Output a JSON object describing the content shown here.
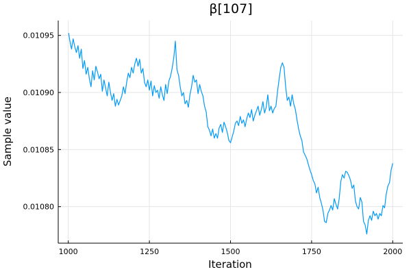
{
  "chart_data": {
    "type": "line",
    "title": "β[107]",
    "xlabel": "Iteration",
    "ylabel": "Sample value",
    "xlim": [
      969,
      2031
    ],
    "ylim": [
      0.010768,
      0.010963
    ],
    "x_ticks": [
      {
        "value": 1000,
        "label": "1000"
      },
      {
        "value": 1250,
        "label": "1250"
      },
      {
        "value": 1500,
        "label": "1500"
      },
      {
        "value": 1750,
        "label": "1750"
      },
      {
        "value": 2000,
        "label": "2000"
      }
    ],
    "y_ticks": [
      {
        "value": 0.0108,
        "label": "0.01080"
      },
      {
        "value": 0.01085,
        "label": "0.01085"
      },
      {
        "value": 0.0109,
        "label": "0.01090"
      },
      {
        "value": 0.01095,
        "label": "0.01095"
      }
    ],
    "grid": true,
    "legend": "none",
    "series": [
      {
        "color": "#009af9",
        "x": [
          1001,
          1005,
          1010,
          1015,
          1020,
          1025,
          1030,
          1035,
          1040,
          1045,
          1050,
          1055,
          1060,
          1065,
          1070,
          1075,
          1080,
          1085,
          1090,
          1095,
          1100,
          1105,
          1110,
          1115,
          1120,
          1125,
          1130,
          1135,
          1140,
          1145,
          1150,
          1155,
          1160,
          1165,
          1170,
          1175,
          1180,
          1185,
          1190,
          1195,
          1200,
          1205,
          1210,
          1215,
          1220,
          1225,
          1230,
          1235,
          1240,
          1245,
          1250,
          1255,
          1260,
          1265,
          1270,
          1275,
          1280,
          1285,
          1290,
          1295,
          1300,
          1305,
          1310,
          1315,
          1320,
          1325,
          1330,
          1335,
          1340,
          1345,
          1350,
          1355,
          1360,
          1365,
          1370,
          1375,
          1380,
          1385,
          1390,
          1395,
          1400,
          1405,
          1410,
          1415,
          1420,
          1425,
          1430,
          1435,
          1440,
          1445,
          1450,
          1455,
          1460,
          1465,
          1470,
          1475,
          1480,
          1485,
          1490,
          1495,
          1500,
          1505,
          1510,
          1515,
          1520,
          1525,
          1530,
          1535,
          1540,
          1545,
          1550,
          1555,
          1560,
          1565,
          1570,
          1575,
          1580,
          1585,
          1590,
          1595,
          1600,
          1605,
          1610,
          1615,
          1620,
          1625,
          1630,
          1635,
          1640,
          1645,
          1650,
          1655,
          1660,
          1665,
          1670,
          1675,
          1680,
          1685,
          1690,
          1695,
          1700,
          1705,
          1710,
          1715,
          1720,
          1725,
          1730,
          1735,
          1740,
          1745,
          1750,
          1755,
          1760,
          1765,
          1770,
          1775,
          1780,
          1785,
          1790,
          1795,
          1800,
          1805,
          1810,
          1815,
          1820,
          1825,
          1830,
          1835,
          1840,
          1845,
          1850,
          1855,
          1860,
          1865,
          1870,
          1875,
          1880,
          1885,
          1890,
          1895,
          1900,
          1905,
          1910,
          1915,
          1920,
          1925,
          1930,
          1935,
          1940,
          1945,
          1950,
          1955,
          1960,
          1965,
          1970,
          1975,
          1980,
          1985,
          1990,
          1995,
          2000
        ],
        "values": [
          0.010952,
          0.010945,
          0.010938,
          0.010947,
          0.01094,
          0.010935,
          0.010941,
          0.01093,
          0.010938,
          0.010921,
          0.010928,
          0.010916,
          0.010922,
          0.010912,
          0.010905,
          0.010919,
          0.010911,
          0.010923,
          0.010918,
          0.010912,
          0.010916,
          0.010901,
          0.010911,
          0.010904,
          0.010897,
          0.010909,
          0.0109,
          0.010893,
          0.010899,
          0.010888,
          0.010894,
          0.010889,
          0.010893,
          0.010897,
          0.010905,
          0.010899,
          0.010909,
          0.010917,
          0.010913,
          0.010922,
          0.010917,
          0.010925,
          0.01093,
          0.010923,
          0.010929,
          0.010917,
          0.010921,
          0.010909,
          0.010905,
          0.010911,
          0.010902,
          0.01091,
          0.010897,
          0.010906,
          0.0109,
          0.010902,
          0.010895,
          0.010905,
          0.010898,
          0.010893,
          0.010907,
          0.010899,
          0.01091,
          0.010914,
          0.010921,
          0.01093,
          0.010945,
          0.01092,
          0.010915,
          0.010905,
          0.010897,
          0.0109,
          0.01089,
          0.010893,
          0.010887,
          0.010898,
          0.010905,
          0.010915,
          0.010909,
          0.010911,
          0.010899,
          0.010907,
          0.010901,
          0.010897,
          0.010888,
          0.010883,
          0.01087,
          0.010867,
          0.010862,
          0.010868,
          0.01086,
          0.010864,
          0.01086,
          0.010869,
          0.010872,
          0.010865,
          0.010874,
          0.01087,
          0.010865,
          0.010858,
          0.010856,
          0.010861,
          0.010866,
          0.010873,
          0.010875,
          0.010871,
          0.010879,
          0.010873,
          0.010876,
          0.01087,
          0.010877,
          0.010882,
          0.010878,
          0.010885,
          0.010875,
          0.01088,
          0.010884,
          0.010888,
          0.01088,
          0.010885,
          0.010892,
          0.010882,
          0.010887,
          0.010898,
          0.010884,
          0.010888,
          0.010882,
          0.010886,
          0.010888,
          0.010901,
          0.010912,
          0.010922,
          0.010926,
          0.010922,
          0.010905,
          0.010893,
          0.010896,
          0.010888,
          0.010898,
          0.01089,
          0.010885,
          0.010876,
          0.010868,
          0.010862,
          0.010858,
          0.010848,
          0.010845,
          0.010842,
          0.010837,
          0.010832,
          0.010828,
          0.010823,
          0.01082,
          0.010812,
          0.010817,
          0.010808,
          0.010803,
          0.010797,
          0.010787,
          0.010786,
          0.010794,
          0.010797,
          0.010801,
          0.010797,
          0.010807,
          0.010802,
          0.010798,
          0.010807,
          0.010822,
          0.010828,
          0.010825,
          0.010831,
          0.01083,
          0.010827,
          0.010823,
          0.010816,
          0.010819,
          0.010805,
          0.0108,
          0.010798,
          0.010808,
          0.010804,
          0.010787,
          0.010784,
          0.010776,
          0.010788,
          0.010792,
          0.010788,
          0.010796,
          0.010792,
          0.010794,
          0.010789,
          0.010794,
          0.010792,
          0.010801,
          0.010799,
          0.010811,
          0.010818,
          0.010821,
          0.010832,
          0.010838
        ]
      }
    ]
  }
}
